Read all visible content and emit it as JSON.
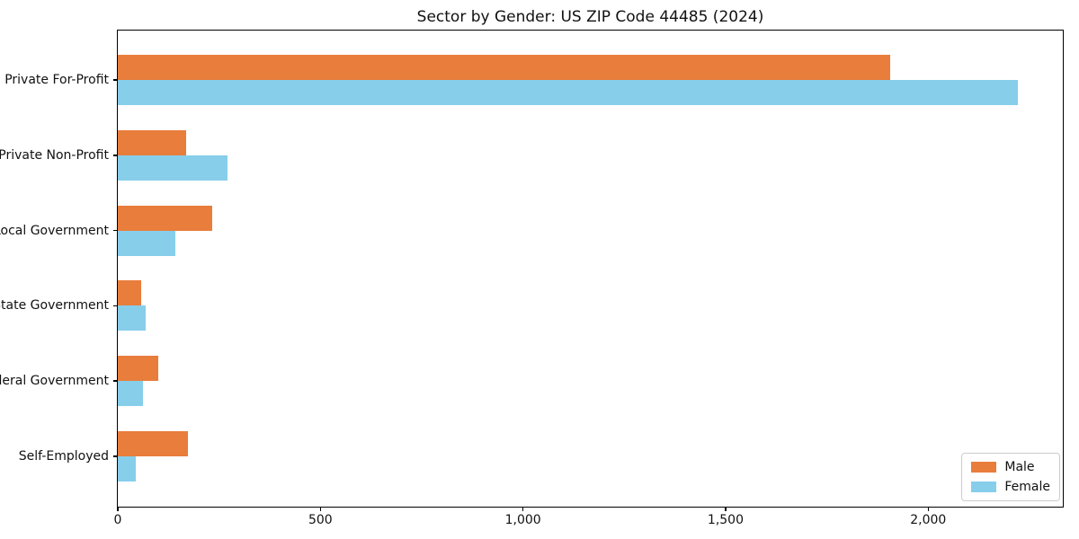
{
  "chart_data": {
    "type": "bar",
    "orientation": "horizontal",
    "title": "Sector by Gender: US ZIP Code 44485 (2024)",
    "categories": [
      "Private For-Profit",
      "Private Non-Profit",
      "Local Government",
      "State Government",
      "Federal Government",
      "Self-Employed"
    ],
    "series": [
      {
        "name": "Male",
        "color": "#E87D3C",
        "values": [
          1907,
          168,
          232,
          58,
          100,
          173
        ]
      },
      {
        "name": "Female",
        "color": "#87CEEB",
        "values": [
          2221,
          270,
          142,
          69,
          62,
          44
        ]
      }
    ],
    "xlabel": "",
    "ylabel": "",
    "xlim": [
      0,
      2330
    ],
    "xticks": [
      {
        "value": 0,
        "label": "0"
      },
      {
        "value": 500,
        "label": "500"
      },
      {
        "value": 1000,
        "label": "1,000"
      },
      {
        "value": 1500,
        "label": "1,500"
      },
      {
        "value": 2000,
        "label": "2,000"
      }
    ],
    "grid": false,
    "legend": {
      "position": "lower right"
    }
  }
}
